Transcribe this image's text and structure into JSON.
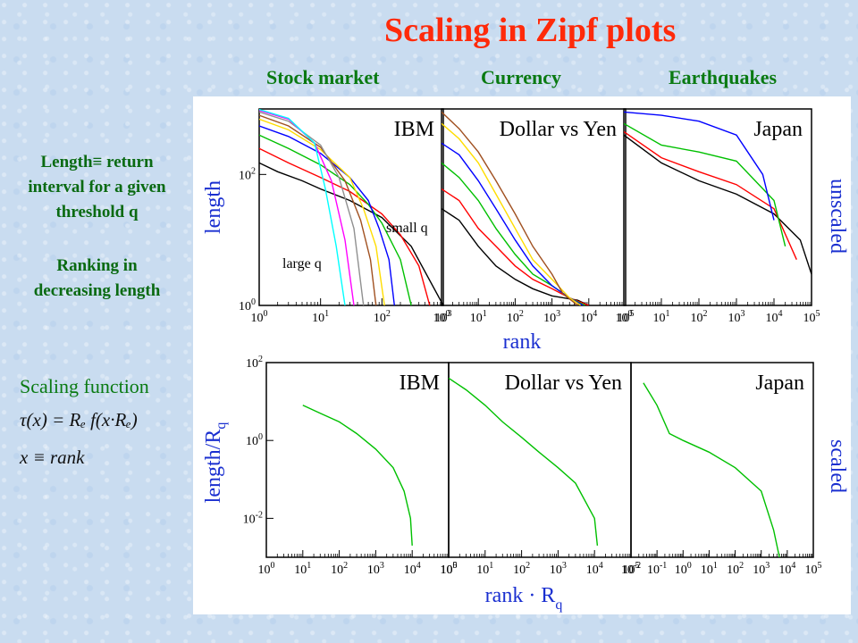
{
  "title": "Scaling in Zipf plots",
  "columns": [
    "Stock market",
    "Currency",
    "Earthquakes"
  ],
  "side": {
    "definition": [
      "Length≡ return",
      "interval for a given",
      "threshold q"
    ],
    "ranking": [
      "Ranking in",
      "decreasing length"
    ],
    "scaling_label": "Scaling function",
    "formula1": "τ(x) = Rₑ f(x·Rₑ)",
    "formula2": "x ≡ rank"
  },
  "colors": {
    "title": "#ff2a0a",
    "headings": "#0a7a12",
    "axis_labels": "#1a2fd0",
    "series": [
      "#000000",
      "#ff0000",
      "#00c000",
      "#0000ff",
      "#ffdd00",
      "#a05020",
      "#909090",
      "#ff00ff",
      "#00ffff",
      "#8000ff"
    ]
  },
  "chart_data": [
    {
      "type": "line",
      "panel": "IBM",
      "row": "unscaled",
      "scale": "log-log",
      "xlim": [
        1,
        1000
      ],
      "ylim": [
        1,
        1000
      ],
      "xticks": [
        "10^0",
        "10^1",
        "10^2",
        "10^3"
      ],
      "yticks": [
        "10^0",
        "10^2"
      ],
      "ylabel": "length",
      "annotations": [
        "small q",
        "large q"
      ],
      "series": [
        {
          "x": [
            1,
            2,
            5,
            10,
            30,
            100,
            300,
            1000
          ],
          "y": [
            150,
            110,
            80,
            60,
            40,
            22,
            8,
            1
          ]
        },
        {
          "x": [
            1,
            3,
            10,
            30,
            100,
            200,
            400,
            600
          ],
          "y": [
            250,
            150,
            90,
            55,
            25,
            12,
            4,
            1
          ]
        },
        {
          "x": [
            1,
            3,
            10,
            30,
            60,
            100,
            200,
            300
          ],
          "y": [
            400,
            250,
            140,
            70,
            35,
            18,
            5,
            1
          ]
        },
        {
          "x": [
            1,
            3,
            10,
            30,
            60,
            90,
            130,
            160
          ],
          "y": [
            550,
            380,
            210,
            90,
            40,
            15,
            5,
            1
          ]
        },
        {
          "x": [
            1,
            3,
            10,
            30,
            50,
            80,
            110
          ],
          "y": [
            700,
            480,
            240,
            90,
            30,
            8,
            1
          ]
        },
        {
          "x": [
            1,
            3,
            10,
            25,
            45,
            65,
            80
          ],
          "y": [
            800,
            550,
            260,
            80,
            20,
            5,
            1
          ]
        },
        {
          "x": [
            1,
            3,
            10,
            20,
            35,
            50
          ],
          "y": [
            900,
            650,
            280,
            90,
            15,
            1
          ]
        },
        {
          "x": [
            1,
            3,
            8,
            15,
            25,
            35
          ],
          "y": [
            950,
            700,
            300,
            80,
            10,
            1
          ]
        },
        {
          "x": [
            1,
            3,
            8,
            12,
            18,
            25
          ],
          "y": [
            980,
            720,
            300,
            60,
            8,
            1
          ]
        }
      ]
    },
    {
      "type": "line",
      "panel": "Dollar vs Yen",
      "row": "unscaled",
      "scale": "log-log",
      "xlim": [
        1,
        100000
      ],
      "ylim": [
        1,
        1000
      ],
      "xticks": [
        "10^0",
        "10^1",
        "10^2",
        "10^3",
        "10^4",
        "10^5"
      ],
      "series": [
        {
          "x": [
            1,
            3,
            10,
            30,
            100,
            300,
            1000,
            5000,
            10000
          ],
          "y": [
            30,
            20,
            8,
            4,
            2.5,
            1.8,
            1.4,
            1.2,
            1
          ]
        },
        {
          "x": [
            1,
            3,
            10,
            30,
            100,
            300,
            1000,
            3000,
            10000
          ],
          "y": [
            60,
            40,
            15,
            8,
            4,
            2.5,
            1.8,
            1.3,
            1
          ]
        },
        {
          "x": [
            1,
            3,
            10,
            30,
            100,
            300,
            1000,
            3000,
            8000
          ],
          "y": [
            150,
            90,
            40,
            15,
            6,
            3,
            2,
            1.3,
            1
          ]
        },
        {
          "x": [
            1,
            3,
            10,
            30,
            100,
            300,
            1000,
            3000,
            7000
          ],
          "y": [
            300,
            200,
            80,
            30,
            10,
            4,
            2,
            1.3,
            1
          ]
        },
        {
          "x": [
            1,
            3,
            10,
            30,
            100,
            300,
            1000,
            3000,
            6000
          ],
          "y": [
            600,
            350,
            150,
            50,
            15,
            5,
            2.5,
            1.3,
            1
          ]
        },
        {
          "x": [
            1,
            3,
            10,
            30,
            100,
            300,
            1000,
            2000,
            5000
          ],
          "y": [
            900,
            500,
            220,
            80,
            25,
            8,
            3,
            1.5,
            1
          ]
        }
      ]
    },
    {
      "type": "line",
      "panel": "Japan",
      "row": "unscaled",
      "scale": "log-log",
      "xlim": [
        1,
        100000
      ],
      "ylim": [
        1,
        1000
      ],
      "xticks": [
        "10^0",
        "10^1",
        "10^2",
        "10^3",
        "10^4",
        "10^5"
      ],
      "ylabel_right": "unscaled",
      "series": [
        {
          "x": [
            1,
            10,
            100,
            1000,
            10000,
            50000,
            100000
          ],
          "y": [
            400,
            150,
            80,
            50,
            25,
            10,
            3
          ]
        },
        {
          "x": [
            1,
            10,
            100,
            1000,
            10000,
            40000
          ],
          "y": [
            450,
            180,
            110,
            70,
            30,
            5
          ]
        },
        {
          "x": [
            1,
            10,
            100,
            1000,
            10000,
            20000
          ],
          "y": [
            600,
            280,
            220,
            160,
            40,
            8
          ]
        },
        {
          "x": [
            1,
            10,
            100,
            1000,
            5000,
            10000
          ],
          "y": [
            900,
            800,
            650,
            400,
            100,
            20
          ]
        }
      ]
    },
    {
      "type": "line",
      "panel": "IBM",
      "row": "scaled",
      "scale": "log-log",
      "xlim": [
        1,
        100000
      ],
      "ylim": [
        0.001,
        100
      ],
      "xticks": [
        "10^0",
        "10^1",
        "10^2",
        "10^3",
        "10^4",
        "10^5"
      ],
      "yticks": [
        "10^-2",
        "10^0",
        "10^2"
      ],
      "ylabel": "length/R_q",
      "series": [
        {
          "x": [
            10,
            30,
            100,
            300,
            1000,
            3000,
            6000,
            9000,
            10000
          ],
          "y": [
            8,
            5,
            3,
            1.5,
            0.6,
            0.2,
            0.05,
            0.01,
            0.002
          ]
        }
      ]
    },
    {
      "type": "line",
      "panel": "Dollar vs Yen",
      "row": "scaled",
      "scale": "log-log",
      "xlim": [
        1,
        100000
      ],
      "ylim": [
        0.001,
        100
      ],
      "xticks": [
        "10^0",
        "10^1",
        "10^2",
        "10^3",
        "10^4",
        "10^5"
      ],
      "xlabel": "rank · R_q",
      "series": [
        {
          "x": [
            1,
            3,
            10,
            30,
            100,
            300,
            1000,
            3000,
            10000,
            12000
          ],
          "y": [
            40,
            20,
            8,
            3,
            1.2,
            0.5,
            0.2,
            0.08,
            0.01,
            0.002
          ]
        }
      ]
    },
    {
      "type": "line",
      "panel": "Japan",
      "row": "scaled",
      "scale": "log-log",
      "xlim": [
        0.01,
        100000
      ],
      "ylim": [
        0.001,
        100
      ],
      "xticks": [
        "10^-2",
        "10^-1",
        "10^0",
        "10^1",
        "10^2",
        "10^3",
        "10^4",
        "10^5"
      ],
      "ylabel_right": "scaled",
      "series": [
        {
          "x": [
            0.03,
            0.1,
            0.3,
            1,
            10,
            100,
            1000,
            3000,
            5000
          ],
          "y": [
            30,
            8,
            1.5,
            1,
            0.5,
            0.2,
            0.05,
            0.005,
            0.001
          ]
        }
      ]
    }
  ],
  "figure_text": {
    "panel_titles": [
      "IBM",
      "Dollar vs Yen",
      "Japan",
      "IBM",
      "Dollar vs Yen",
      "Japan"
    ],
    "annot_small_q": "small q",
    "annot_large_q": "large q",
    "ylabel_top": "length",
    "ylabel_bottom": "length/R",
    "ylabel_bottom_sub": "q",
    "xlabel_top": "rank",
    "xlabel_bottom": "rank · R",
    "xlabel_bottom_sub": "q",
    "right_top": "unscaled",
    "right_bottom": "scaled"
  }
}
